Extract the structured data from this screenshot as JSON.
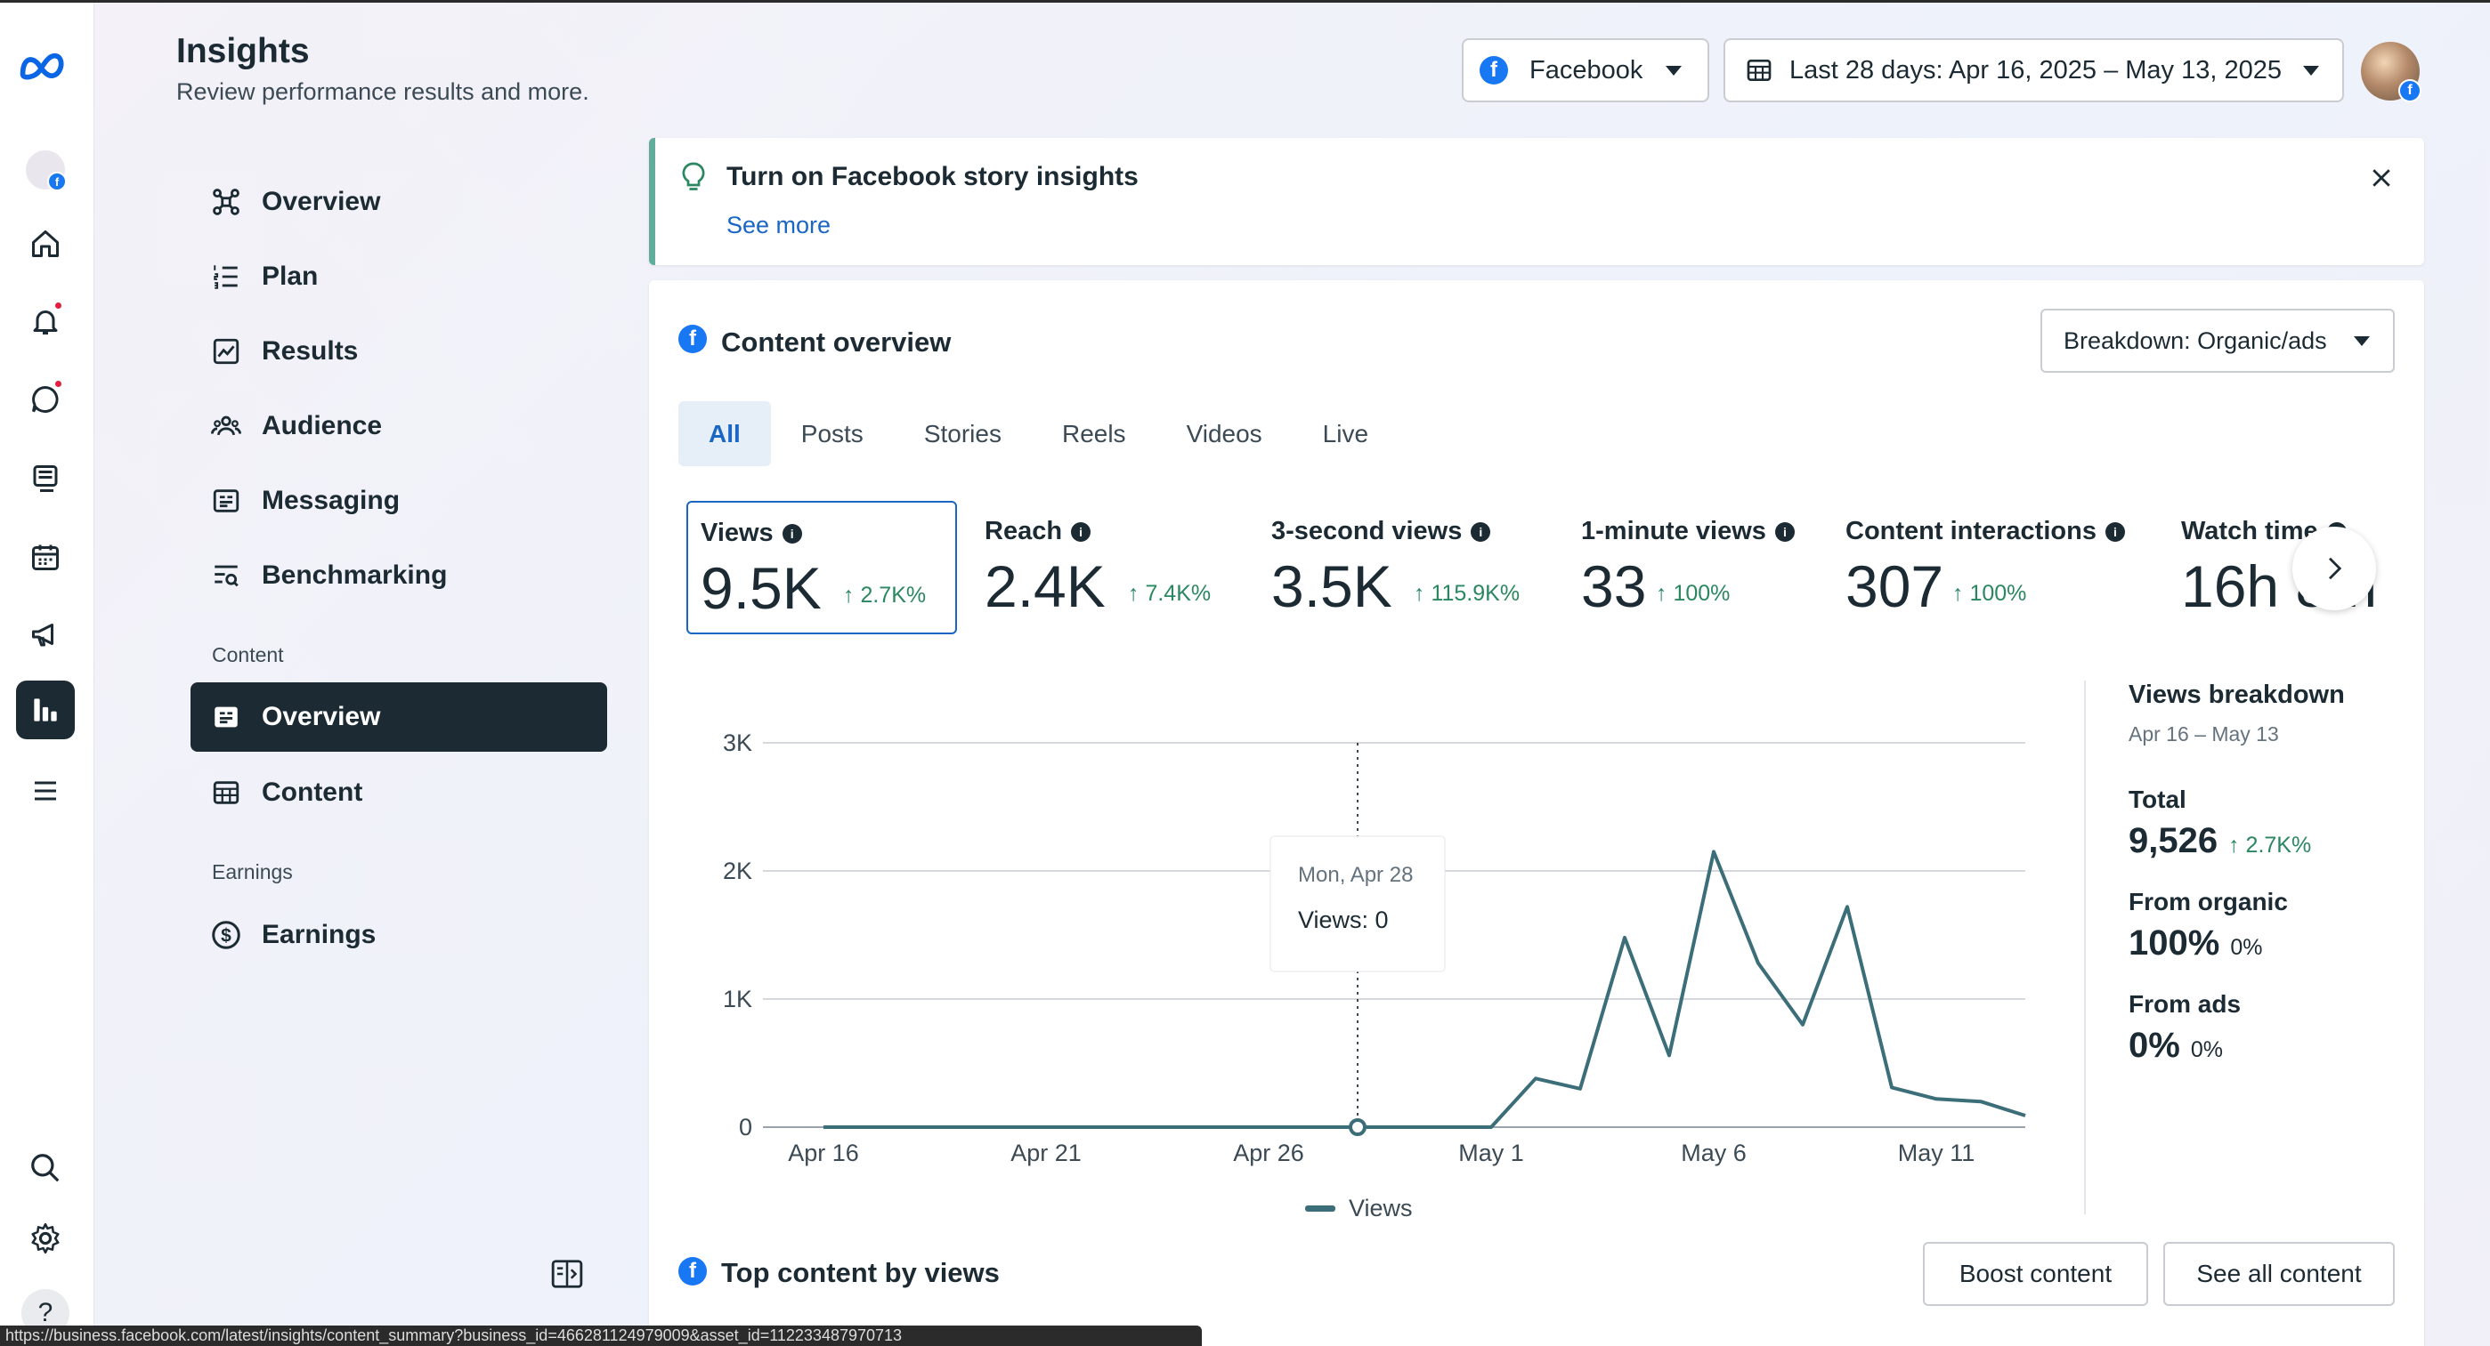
{
  "header": {
    "title": "Insights",
    "subtitle": "Review performance results and more.",
    "platform": "Facebook",
    "date_range": "Last 28 days: Apr 16, 2025 – May 13, 2025"
  },
  "nav": {
    "items": [
      "Overview",
      "Plan",
      "Results",
      "Audience",
      "Messaging",
      "Benchmarking"
    ],
    "content_section": "Content",
    "content_items": [
      "Overview",
      "Content"
    ],
    "earnings_section": "Earnings",
    "earnings_items": [
      "Earnings"
    ]
  },
  "banner": {
    "title": "Turn on Facebook story insights",
    "link": "See more"
  },
  "overview": {
    "title": "Content overview",
    "breakdown": "Breakdown: Organic/ads",
    "tabs": [
      "All",
      "Posts",
      "Stories",
      "Reels",
      "Videos",
      "Live"
    ],
    "metrics": [
      {
        "label": "Views",
        "value": "9.5K",
        "change": "↑ 2.7K%"
      },
      {
        "label": "Reach",
        "value": "2.4K",
        "change": "↑ 7.4K%"
      },
      {
        "label": "3-second views",
        "value": "3.5K",
        "change": "↑ 115.9K%"
      },
      {
        "label": "1-minute views",
        "value": "33",
        "change": "↑ 100%"
      },
      {
        "label": "Content interactions",
        "value": "307",
        "change": "↑ 100%"
      },
      {
        "label": "Watch time",
        "value": "16h 8m"
      }
    ]
  },
  "tooltip": {
    "date": "Mon, Apr 28",
    "value": "Views: 0"
  },
  "chart_data": {
    "type": "line",
    "x": [
      "Apr 16",
      "Apr 17",
      "Apr 18",
      "Apr 19",
      "Apr 20",
      "Apr 21",
      "Apr 22",
      "Apr 23",
      "Apr 24",
      "Apr 25",
      "Apr 26",
      "Apr 27",
      "Apr 28",
      "Apr 29",
      "Apr 30",
      "May 1",
      "May 2",
      "May 3",
      "May 4",
      "May 5",
      "May 6",
      "May 7",
      "May 8",
      "May 9",
      "May 10",
      "May 11",
      "May 12",
      "May 13"
    ],
    "series": [
      {
        "name": "Views",
        "values": [
          0,
          0,
          0,
          0,
          0,
          0,
          0,
          0,
          0,
          0,
          0,
          0,
          0,
          0,
          0,
          0,
          380,
          300,
          1480,
          560,
          2150,
          1280,
          800,
          1720,
          310,
          220,
          200,
          90
        ]
      }
    ],
    "x_ticks": [
      "Apr 16",
      "Apr 21",
      "Apr 26",
      "May 1",
      "May 6",
      "May 11"
    ],
    "y_ticks": [
      "0",
      "1K",
      "2K",
      "3K"
    ],
    "ylim": [
      0,
      3000
    ],
    "legend": "Views",
    "legend_position": "bottom",
    "grid": true,
    "color": "#3b6e78"
  },
  "breakdown_panel": {
    "title": "Views breakdown",
    "range": "Apr 16 – May 13",
    "total_label": "Total",
    "total_value": "9,526",
    "total_change": "↑ 2.7K%",
    "organic_label": "From organic",
    "organic_value": "100%",
    "organic_change": "0%",
    "ads_label": "From ads",
    "ads_value": "0%",
    "ads_change": "0%"
  },
  "top_content": {
    "title": "Top content by views",
    "boost": "Boost content",
    "see_all": "See all content"
  },
  "status_url": "https://business.facebook.com/latest/insights/content_summary?business_id=466281124979009&asset_id=112233487970713"
}
